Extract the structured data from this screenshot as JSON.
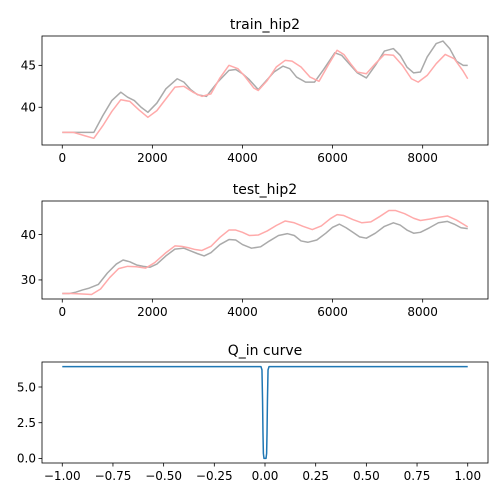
{
  "chart_data": [
    {
      "type": "line",
      "title": "train_hip2",
      "xlabel": "",
      "ylabel": "",
      "xlim": [
        -450,
        9450
      ],
      "ylim": [
        35.5,
        48.5
      ],
      "xticks": [
        0,
        2000,
        4000,
        6000,
        8000
      ],
      "yticks": [
        40,
        45
      ],
      "grid": false,
      "legend": "none",
      "series": [
        {
          "color": "#aaaaaa",
          "points": [
            [
              0,
              37
            ],
            [
              300,
              37
            ],
            [
              700,
              37
            ],
            [
              900,
              39
            ],
            [
              1100,
              40.8
            ],
            [
              1300,
              41.8
            ],
            [
              1450,
              41.2
            ],
            [
              1600,
              40.8
            ],
            [
              1750,
              40
            ],
            [
              1900,
              39.4
            ],
            [
              2100,
              40.5
            ],
            [
              2300,
              42.2
            ],
            [
              2550,
              43.4
            ],
            [
              2700,
              43
            ],
            [
              2850,
              42.1
            ],
            [
              3000,
              41.5
            ],
            [
              3200,
              41.3
            ],
            [
              3450,
              43
            ],
            [
              3700,
              44.4
            ],
            [
              3850,
              44.5
            ],
            [
              4000,
              44
            ],
            [
              4150,
              43.3
            ],
            [
              4350,
              42.1
            ],
            [
              4500,
              43
            ],
            [
              4700,
              44.2
            ],
            [
              4900,
              44.9
            ],
            [
              5050,
              44.6
            ],
            [
              5200,
              43.6
            ],
            [
              5400,
              43
            ],
            [
              5600,
              43
            ],
            [
              5800,
              44.5
            ],
            [
              6050,
              46.5
            ],
            [
              6200,
              46.2
            ],
            [
              6400,
              45
            ],
            [
              6550,
              44.1
            ],
            [
              6750,
              43.5
            ],
            [
              6950,
              45
            ],
            [
              7150,
              46.7
            ],
            [
              7350,
              47
            ],
            [
              7500,
              46.2
            ],
            [
              7650,
              44.8
            ],
            [
              7800,
              44.1
            ],
            [
              7950,
              44.2
            ],
            [
              8100,
              46
            ],
            [
              8300,
              47.6
            ],
            [
              8450,
              47.9
            ],
            [
              8600,
              47
            ],
            [
              8750,
              45.5
            ],
            [
              8900,
              45
            ],
            [
              9000,
              45
            ]
          ]
        },
        {
          "color": "#ffaaaa",
          "points": [
            [
              0,
              37
            ],
            [
              250,
              37
            ],
            [
              500,
              36.6
            ],
            [
              700,
              36.3
            ],
            [
              900,
              37.8
            ],
            [
              1100,
              39.5
            ],
            [
              1300,
              40.9
            ],
            [
              1500,
              40.7
            ],
            [
              1700,
              39.7
            ],
            [
              1900,
              38.8
            ],
            [
              2100,
              39.6
            ],
            [
              2300,
              41
            ],
            [
              2500,
              42.4
            ],
            [
              2700,
              42.5
            ],
            [
              2900,
              41.8
            ],
            [
              3100,
              41.3
            ],
            [
              3300,
              41.6
            ],
            [
              3500,
              43.5
            ],
            [
              3700,
              45
            ],
            [
              3900,
              44.6
            ],
            [
              4050,
              43.7
            ],
            [
              4250,
              42.3
            ],
            [
              4350,
              42
            ],
            [
              4550,
              43.2
            ],
            [
              4750,
              44.8
            ],
            [
              4950,
              45.6
            ],
            [
              5100,
              45.5
            ],
            [
              5300,
              44.8
            ],
            [
              5500,
              43.6
            ],
            [
              5700,
              43.1
            ],
            [
              5900,
              45
            ],
            [
              6100,
              46.8
            ],
            [
              6250,
              46.3
            ],
            [
              6400,
              45.2
            ],
            [
              6550,
              44.2
            ],
            [
              6750,
              44
            ],
            [
              6950,
              45.2
            ],
            [
              7150,
              46.3
            ],
            [
              7350,
              46.2
            ],
            [
              7550,
              45
            ],
            [
              7750,
              43.4
            ],
            [
              7900,
              43
            ],
            [
              8100,
              43.8
            ],
            [
              8300,
              45.2
            ],
            [
              8500,
              46.3
            ],
            [
              8700,
              45.8
            ],
            [
              8900,
              44.3
            ],
            [
              9000,
              43.4
            ]
          ]
        }
      ]
    },
    {
      "type": "line",
      "title": "test_hip2",
      "xlabel": "",
      "ylabel": "",
      "xlim": [
        -450,
        9450
      ],
      "ylim": [
        25.8,
        47.4
      ],
      "xticks": [
        0,
        2000,
        4000,
        6000,
        8000
      ],
      "yticks": [
        30,
        40
      ],
      "grid": false,
      "legend": "none",
      "series": [
        {
          "color": "#aaaaaa",
          "points": [
            [
              0,
              27
            ],
            [
              150,
              27
            ],
            [
              300,
              27.3
            ],
            [
              450,
              27.8
            ],
            [
              600,
              28.2
            ],
            [
              800,
              29
            ],
            [
              1000,
              31.5
            ],
            [
              1200,
              33.5
            ],
            [
              1350,
              34.4
            ],
            [
              1500,
              34
            ],
            [
              1650,
              33.3
            ],
            [
              1800,
              33
            ],
            [
              1950,
              32.8
            ],
            [
              2100,
              33.5
            ],
            [
              2300,
              35.3
            ],
            [
              2500,
              36.8
            ],
            [
              2700,
              37
            ],
            [
              2850,
              36.4
            ],
            [
              3000,
              35.8
            ],
            [
              3150,
              35.3
            ],
            [
              3300,
              36
            ],
            [
              3500,
              37.8
            ],
            [
              3700,
              38.9
            ],
            [
              3850,
              38.8
            ],
            [
              4000,
              37.8
            ],
            [
              4200,
              37
            ],
            [
              4400,
              37.3
            ],
            [
              4600,
              38.6
            ],
            [
              4800,
              39.8
            ],
            [
              5000,
              40.2
            ],
            [
              5150,
              39.8
            ],
            [
              5300,
              38.6
            ],
            [
              5450,
              38.3
            ],
            [
              5650,
              38.8
            ],
            [
              5850,
              40.3
            ],
            [
              6000,
              41.6
            ],
            [
              6150,
              42.3
            ],
            [
              6300,
              41.5
            ],
            [
              6450,
              40.5
            ],
            [
              6600,
              39.5
            ],
            [
              6750,
              39.2
            ],
            [
              6950,
              40.3
            ],
            [
              7150,
              41.8
            ],
            [
              7350,
              42.6
            ],
            [
              7500,
              42.1
            ],
            [
              7650,
              41
            ],
            [
              7800,
              40.3
            ],
            [
              7950,
              40.5
            ],
            [
              8150,
              41.5
            ],
            [
              8350,
              42.6
            ],
            [
              8550,
              42.9
            ],
            [
              8700,
              42.3
            ],
            [
              8850,
              41.5
            ],
            [
              9000,
              41.3
            ]
          ]
        },
        {
          "color": "#ffaaaa",
          "points": [
            [
              0,
              27
            ],
            [
              200,
              27
            ],
            [
              450,
              26.9
            ],
            [
              650,
              26.8
            ],
            [
              850,
              28
            ],
            [
              1050,
              30.5
            ],
            [
              1250,
              32.5
            ],
            [
              1450,
              33
            ],
            [
              1650,
              32.9
            ],
            [
              1850,
              32.6
            ],
            [
              2050,
              33.8
            ],
            [
              2300,
              36
            ],
            [
              2500,
              37.5
            ],
            [
              2650,
              37.4
            ],
            [
              2800,
              37.1
            ],
            [
              2950,
              36.7
            ],
            [
              3100,
              36.5
            ],
            [
              3300,
              37.4
            ],
            [
              3500,
              39.4
            ],
            [
              3700,
              41
            ],
            [
              3850,
              41
            ],
            [
              4000,
              40.5
            ],
            [
              4150,
              39.8
            ],
            [
              4350,
              39.9
            ],
            [
              4550,
              40.8
            ],
            [
              4750,
              42
            ],
            [
              4950,
              43
            ],
            [
              5150,
              42.6
            ],
            [
              5350,
              41.8
            ],
            [
              5550,
              41.1
            ],
            [
              5750,
              41.9
            ],
            [
              5950,
              43.5
            ],
            [
              6100,
              44.4
            ],
            [
              6250,
              44.2
            ],
            [
              6450,
              43.3
            ],
            [
              6650,
              42.6
            ],
            [
              6850,
              42.8
            ],
            [
              7050,
              44
            ],
            [
              7250,
              45.3
            ],
            [
              7400,
              45.3
            ],
            [
              7600,
              44.6
            ],
            [
              7800,
              43.6
            ],
            [
              7950,
              43.1
            ],
            [
              8150,
              43.4
            ],
            [
              8350,
              43.8
            ],
            [
              8550,
              44.1
            ],
            [
              8750,
              43.2
            ],
            [
              8900,
              42.3
            ],
            [
              9000,
              41.7
            ]
          ]
        }
      ]
    },
    {
      "type": "line",
      "title": "Q_in curve",
      "xlabel": "",
      "ylabel": "",
      "xlim": [
        -1.1,
        1.1
      ],
      "ylim": [
        -0.32,
        6.75
      ],
      "xticks": [
        -1.0,
        -0.75,
        -0.5,
        -0.25,
        0.0,
        0.25,
        0.5,
        0.75,
        1.0
      ],
      "xtick_labels": [
        "−1.00",
        "−0.75",
        "−0.50",
        "−0.25",
        "0.00",
        "0.25",
        "0.50",
        "0.75",
        "1.00"
      ],
      "yticks": [
        0.0,
        2.5,
        5.0
      ],
      "ytick_labels": [
        "0.0",
        "2.5",
        "5.0"
      ],
      "grid": false,
      "legend": "none",
      "series": [
        {
          "color": "#1f77b4",
          "points": [
            [
              -1.0,
              6.43
            ],
            [
              -0.02,
              6.43
            ],
            [
              -0.015,
              6.2
            ],
            [
              -0.012,
              4.0
            ],
            [
              -0.01,
              1.8
            ],
            [
              -0.008,
              0.35
            ],
            [
              -0.005,
              0.0
            ],
            [
              0.005,
              0.0
            ],
            [
              0.008,
              0.35
            ],
            [
              0.01,
              1.8
            ],
            [
              0.012,
              4.0
            ],
            [
              0.015,
              6.2
            ],
            [
              0.02,
              6.43
            ],
            [
              1.0,
              6.43
            ]
          ]
        }
      ]
    }
  ]
}
